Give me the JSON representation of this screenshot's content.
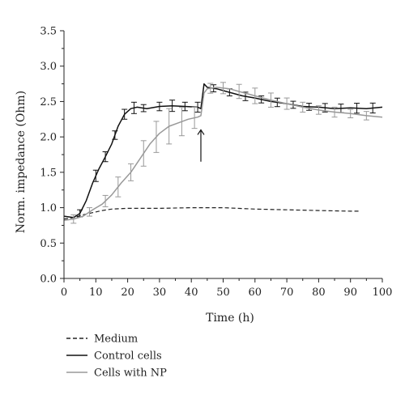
{
  "chart_data": {
    "type": "line",
    "xlabel": "Time (h)",
    "ylabel": "Norm. impedance (Ohm)",
    "xlim": [
      0,
      100
    ],
    "ylim": [
      0.0,
      3.5
    ],
    "xticks": [
      "0",
      "10",
      "20",
      "30",
      "40",
      "50",
      "60",
      "70",
      "80",
      "90",
      "100"
    ],
    "yticks": [
      "0.0",
      "0.5",
      "1.0",
      "1.5",
      "2.0",
      "2.5",
      "3.0",
      "3.5"
    ],
    "grid": false,
    "legend_position": "bottom-left, below plot",
    "annotations": [
      {
        "type": "arrow",
        "x": 43,
        "y_from": 1.65,
        "y_to": 2.1
      }
    ],
    "series": [
      {
        "name": "Medium",
        "style": "dashed",
        "color": "#222222",
        "x": [
          0,
          3,
          6,
          9,
          12,
          15,
          20,
          30,
          40,
          50,
          60,
          70,
          80,
          90,
          93
        ],
        "y": [
          0.84,
          0.86,
          0.9,
          0.93,
          0.96,
          0.98,
          0.99,
          0.99,
          1.0,
          1.0,
          0.98,
          0.97,
          0.96,
          0.95,
          0.95
        ]
      },
      {
        "name": "Control cells",
        "style": "solid",
        "color": "#111111",
        "x": [
          0,
          3,
          5,
          7,
          9,
          11,
          13,
          15,
          17,
          19,
          21,
          23,
          26,
          30,
          34,
          38,
          42,
          43,
          44,
          45,
          48,
          52,
          56,
          60,
          65,
          70,
          75,
          80,
          85,
          90,
          95,
          100
        ],
        "y": [
          0.88,
          0.86,
          0.92,
          1.1,
          1.35,
          1.55,
          1.72,
          1.9,
          2.15,
          2.32,
          2.4,
          2.42,
          2.4,
          2.43,
          2.44,
          2.43,
          2.42,
          2.4,
          2.75,
          2.7,
          2.68,
          2.63,
          2.58,
          2.55,
          2.5,
          2.47,
          2.43,
          2.42,
          2.4,
          2.41,
          2.4,
          2.42
        ],
        "error_bar_x": [
          5,
          10,
          13,
          16,
          19,
          22,
          25,
          30,
          34,
          38,
          42,
          47,
          52,
          57,
          62,
          67,
          72,
          77,
          82,
          87,
          92,
          97
        ],
        "error_bar_half": [
          0.05,
          0.08,
          0.07,
          0.06,
          0.07,
          0.08,
          0.05,
          0.06,
          0.08,
          0.06,
          0.07,
          0.05,
          0.05,
          0.06,
          0.05,
          0.06,
          0.05,
          0.05,
          0.06,
          0.06,
          0.07,
          0.07
        ]
      },
      {
        "name": "Cells with NP",
        "style": "solid",
        "color": "#999999",
        "x": [
          0,
          3,
          6,
          9,
          12,
          15,
          18,
          21,
          24,
          27,
          30,
          33,
          36,
          39,
          42,
          43,
          44,
          45,
          48,
          52,
          56,
          60,
          65,
          70,
          75,
          80,
          85,
          90,
          95,
          100
        ],
        "y": [
          0.82,
          0.84,
          0.88,
          0.97,
          1.05,
          1.18,
          1.35,
          1.5,
          1.7,
          1.9,
          2.05,
          2.15,
          2.2,
          2.25,
          2.28,
          2.3,
          2.62,
          2.68,
          2.7,
          2.68,
          2.63,
          2.58,
          2.52,
          2.47,
          2.42,
          2.38,
          2.35,
          2.33,
          2.3,
          2.28
        ],
        "error_bar_x": [
          3,
          8,
          13,
          17,
          21,
          25,
          29,
          33,
          37,
          41,
          46,
          50,
          55,
          60,
          65,
          70,
          75,
          80,
          85,
          90,
          95
        ],
        "error_bar_half": [
          0.06,
          0.06,
          0.08,
          0.14,
          0.12,
          0.18,
          0.22,
          0.25,
          0.2,
          0.15,
          0.07,
          0.08,
          0.1,
          0.11,
          0.1,
          0.08,
          0.07,
          0.06,
          0.07,
          0.06,
          0.06
        ]
      }
    ]
  }
}
